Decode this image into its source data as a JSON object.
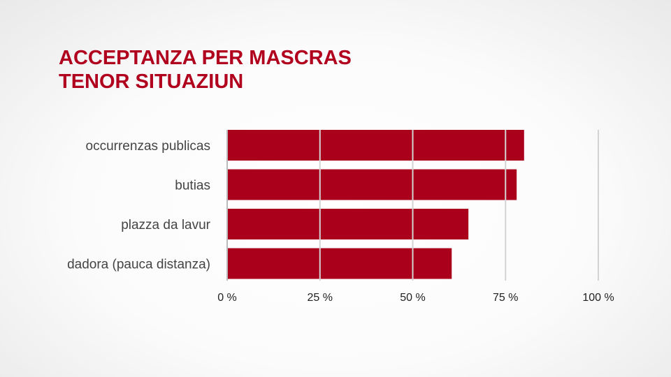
{
  "chart_data": {
    "type": "bar",
    "orientation": "horizontal",
    "title": [
      "ACCEPTANZA PER MASCRAS",
      "TENOR SITUAZIUN"
    ],
    "categories": [
      "occurrenzas publicas",
      "butias",
      "plazza da lavur",
      "dadora (pauca distanza)"
    ],
    "values": [
      80,
      78,
      65,
      60.5
    ],
    "unit": "%",
    "xlim": [
      0,
      100
    ],
    "xticks": [
      0,
      25,
      50,
      75,
      100
    ],
    "xtick_labels": [
      "0 %",
      "25 %",
      "50 %",
      "75 %",
      "100 %"
    ],
    "grid": true,
    "colors": {
      "bar": "#ab001c",
      "title": "#b0001e",
      "grid": "#cccccc"
    }
  }
}
